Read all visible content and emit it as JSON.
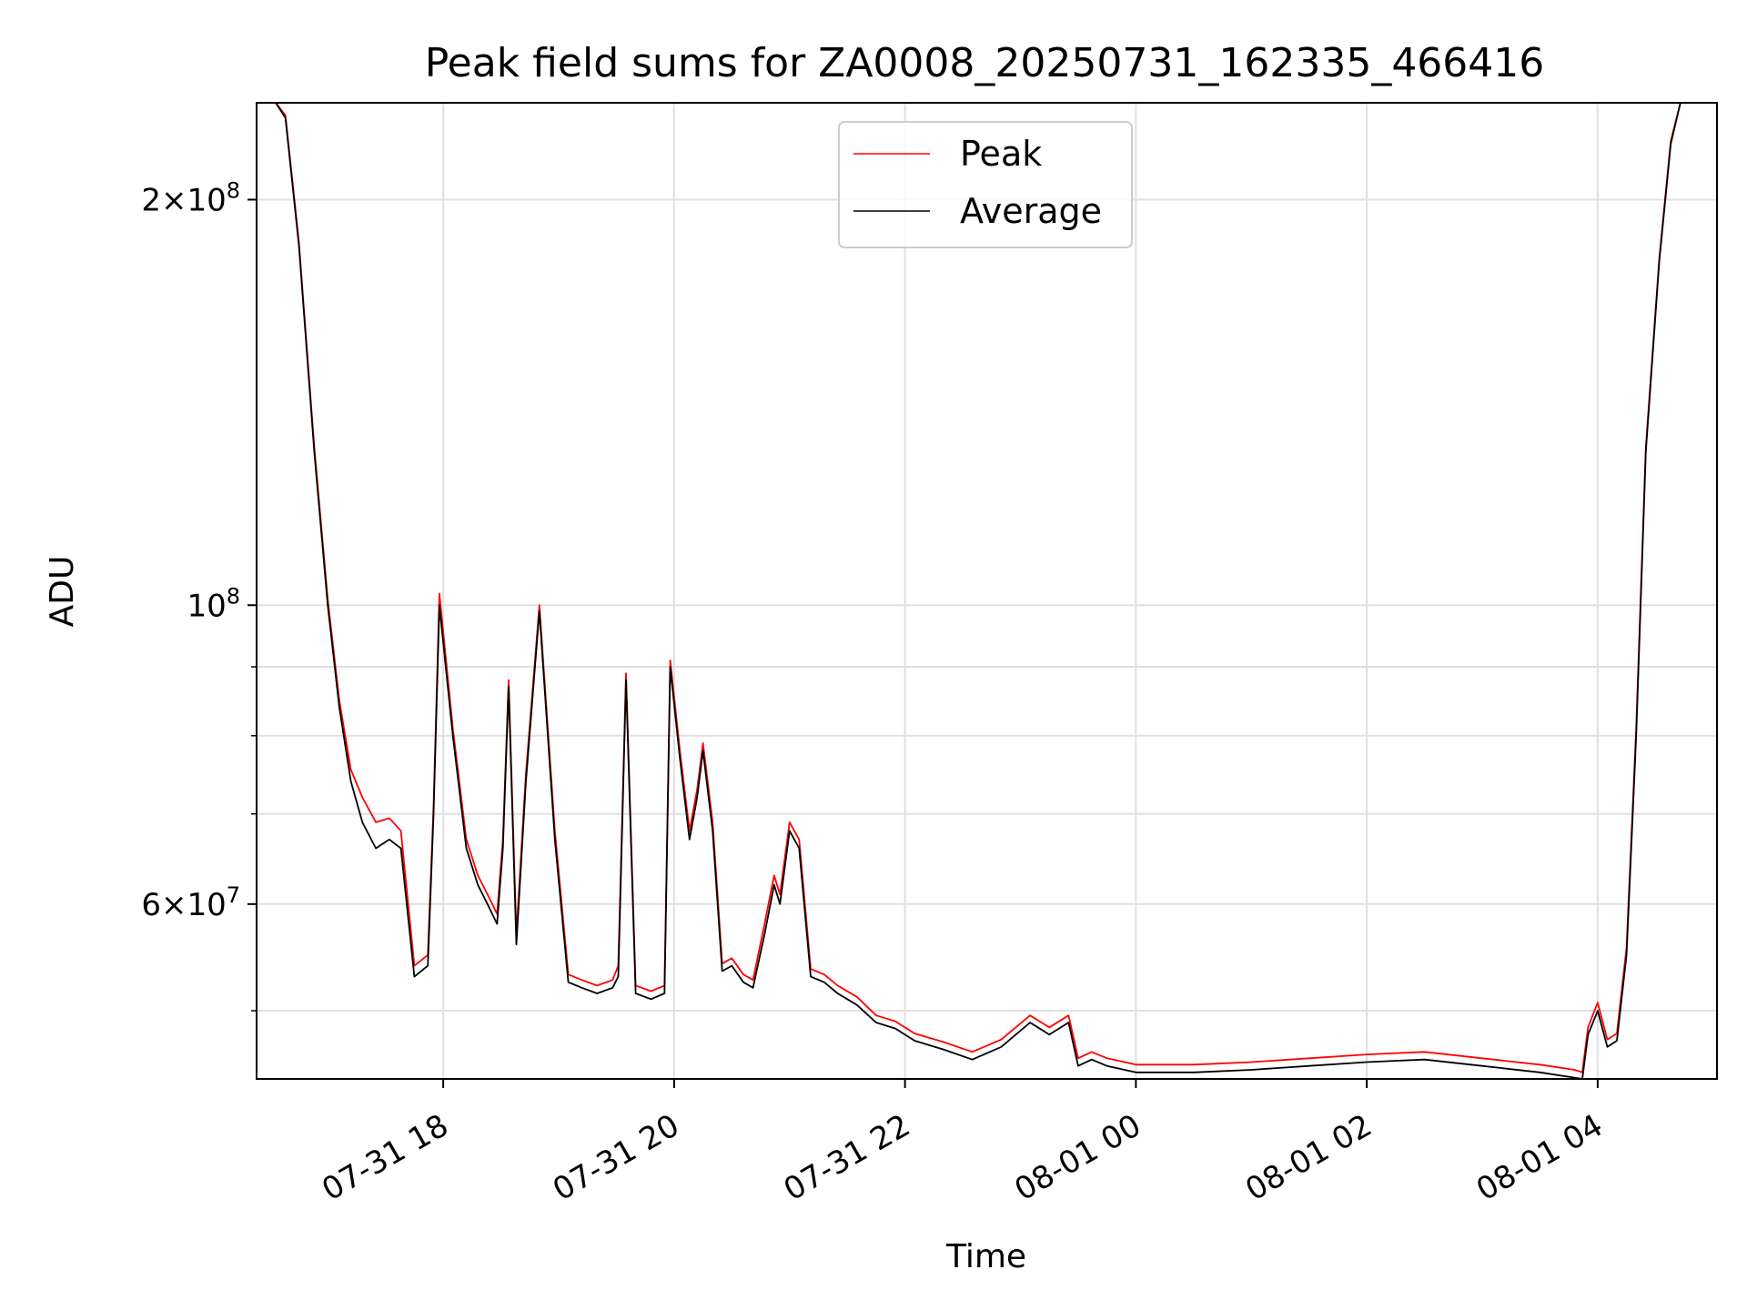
{
  "chart_data": {
    "type": "line",
    "title": "Peak field sums for ZA0008_20250731_162335_466416",
    "xlabel": "Time",
    "ylabel": "ADU",
    "yscale": "log",
    "xlim": [
      "2025-07-31 16:23",
      "2025-08-01 05:02"
    ],
    "ylim": [
      44500000,
      236000000
    ],
    "grid": true,
    "legend": {
      "position": "top-center",
      "entries": [
        "Peak",
        "Average"
      ]
    },
    "colors": {
      "Peak": "#ff0000",
      "Average": "#000000",
      "grid": "#e0e0e0",
      "axis": "#000000"
    },
    "x_ticks": [
      {
        "time": "2025-07-31 18:00",
        "label": "07-31 18"
      },
      {
        "time": "2025-07-31 20:00",
        "label": "07-31 20"
      },
      {
        "time": "2025-07-31 22:00",
        "label": "07-31 22"
      },
      {
        "time": "2025-08-01 00:00",
        "label": "08-01 00"
      },
      {
        "time": "2025-08-01 02:00",
        "label": "08-01 02"
      },
      {
        "time": "2025-08-01 04:00",
        "label": "08-01 04"
      }
    ],
    "y_ticks": [
      {
        "value": 200000000,
        "mantissa": "2",
        "exp": "8"
      },
      {
        "value": 100000000,
        "mantissa": "",
        "exp": "8"
      },
      {
        "value": 60000000,
        "mantissa": "6",
        "exp": "7"
      }
    ],
    "y_minor_ticks": [
      50000000,
      70000000,
      80000000,
      90000000
    ],
    "series": [
      {
        "name": "Average",
        "x": [
          "2025-07-31 16:23",
          "2025-07-31 16:33",
          "2025-07-31 16:38",
          "2025-07-31 16:45",
          "2025-07-31 16:53",
          "2025-07-31 17:00",
          "2025-07-31 17:06",
          "2025-07-31 17:12",
          "2025-07-31 17:18",
          "2025-07-31 17:25",
          "2025-07-31 17:32",
          "2025-07-31 17:38",
          "2025-07-31 17:45",
          "2025-07-31 17:52",
          "2025-07-31 17:55",
          "2025-07-31 17:58",
          "2025-07-31 18:05",
          "2025-07-31 18:12",
          "2025-07-31 18:18",
          "2025-07-31 18:23",
          "2025-07-31 18:28",
          "2025-07-31 18:31",
          "2025-07-31 18:34",
          "2025-07-31 18:38",
          "2025-07-31 18:43",
          "2025-07-31 18:50",
          "2025-07-31 18:58",
          "2025-07-31 19:05",
          "2025-07-31 19:12",
          "2025-07-31 19:20",
          "2025-07-31 19:28",
          "2025-07-31 19:31",
          "2025-07-31 19:35",
          "2025-07-31 19:40",
          "2025-07-31 19:48",
          "2025-07-31 19:55",
          "2025-07-31 19:58",
          "2025-07-31 20:03",
          "2025-07-31 20:08",
          "2025-07-31 20:12",
          "2025-07-31 20:15",
          "2025-07-31 20:20",
          "2025-07-31 20:25",
          "2025-07-31 20:30",
          "2025-07-31 20:36",
          "2025-07-31 20:41",
          "2025-07-31 20:47",
          "2025-07-31 20:52",
          "2025-07-31 20:55",
          "2025-07-31 21:00",
          "2025-07-31 21:05",
          "2025-07-31 21:11",
          "2025-07-31 21:18",
          "2025-07-31 21:25",
          "2025-07-31 21:35",
          "2025-07-31 21:45",
          "2025-07-31 21:55",
          "2025-07-31 22:05",
          "2025-07-31 22:20",
          "2025-07-31 22:35",
          "2025-07-31 22:50",
          "2025-07-31 23:05",
          "2025-07-31 23:15",
          "2025-07-31 23:25",
          "2025-07-31 23:30",
          "2025-07-31 23:37",
          "2025-07-31 23:45",
          "2025-08-01 00:00",
          "2025-08-01 00:30",
          "2025-08-01 01:00",
          "2025-08-01 01:30",
          "2025-08-01 02:00",
          "2025-08-01 02:30",
          "2025-08-01 03:00",
          "2025-08-01 03:30",
          "2025-08-01 03:48",
          "2025-08-01 03:52",
          "2025-08-01 03:55",
          "2025-08-01 04:00",
          "2025-08-01 04:05",
          "2025-08-01 04:10",
          "2025-08-01 04:15",
          "2025-08-01 04:20",
          "2025-08-01 04:25",
          "2025-08-01 04:32",
          "2025-08-01 04:38",
          "2025-08-01 04:43",
          "2025-08-01 04:48",
          "2025-08-01 05:02"
        ],
        "y": [
          236000000,
          236000000,
          230000000,
          185000000,
          130000000,
          100000000,
          84000000,
          74000000,
          69000000,
          66000000,
          67000000,
          66000000,
          53000000,
          54000000,
          70000000,
          100000000,
          80000000,
          66000000,
          62000000,
          60000000,
          58000000,
          66000000,
          87000000,
          56000000,
          74000000,
          99000000,
          67000000,
          52500000,
          52000000,
          51500000,
          52000000,
          53000000,
          88000000,
          51500000,
          51000000,
          51500000,
          90000000,
          77000000,
          67000000,
          72000000,
          78000000,
          68000000,
          53500000,
          54000000,
          52500000,
          52000000,
          57000000,
          62000000,
          60000000,
          68000000,
          66000000,
          53000000,
          52500000,
          51500000,
          50500000,
          49000000,
          48500000,
          47500000,
          46800000,
          46000000,
          47000000,
          49000000,
          48000000,
          49000000,
          45500000,
          46000000,
          45500000,
          45000000,
          45000000,
          45200000,
          45500000,
          45800000,
          46000000,
          45500000,
          45000000,
          44600000,
          44500000,
          48000000,
          50000000,
          47000000,
          47500000,
          55000000,
          80000000,
          130000000,
          180000000,
          220000000,
          236000000,
          236000000,
          236000000
        ]
      },
      {
        "name": "Peak",
        "x": [
          "2025-07-31 16:23",
          "2025-07-31 16:33",
          "2025-07-31 16:38",
          "2025-07-31 16:45",
          "2025-07-31 16:53",
          "2025-07-31 17:00",
          "2025-07-31 17:06",
          "2025-07-31 17:12",
          "2025-07-31 17:18",
          "2025-07-31 17:25",
          "2025-07-31 17:32",
          "2025-07-31 17:38",
          "2025-07-31 17:45",
          "2025-07-31 17:52",
          "2025-07-31 17:55",
          "2025-07-31 17:58",
          "2025-07-31 18:05",
          "2025-07-31 18:12",
          "2025-07-31 18:18",
          "2025-07-31 18:23",
          "2025-07-31 18:28",
          "2025-07-31 18:31",
          "2025-07-31 18:34",
          "2025-07-31 18:38",
          "2025-07-31 18:43",
          "2025-07-31 18:50",
          "2025-07-31 18:58",
          "2025-07-31 19:05",
          "2025-07-31 19:12",
          "2025-07-31 19:20",
          "2025-07-31 19:28",
          "2025-07-31 19:31",
          "2025-07-31 19:35",
          "2025-07-31 19:40",
          "2025-07-31 19:48",
          "2025-07-31 19:55",
          "2025-07-31 19:58",
          "2025-07-31 20:03",
          "2025-07-31 20:08",
          "2025-07-31 20:12",
          "2025-07-31 20:15",
          "2025-07-31 20:20",
          "2025-07-31 20:25",
          "2025-07-31 20:30",
          "2025-07-31 20:36",
          "2025-07-31 20:41",
          "2025-07-31 20:47",
          "2025-07-31 20:52",
          "2025-07-31 20:55",
          "2025-07-31 21:00",
          "2025-07-31 21:05",
          "2025-07-31 21:11",
          "2025-07-31 21:18",
          "2025-07-31 21:25",
          "2025-07-31 21:35",
          "2025-07-31 21:45",
          "2025-07-31 21:55",
          "2025-07-31 22:05",
          "2025-07-31 22:20",
          "2025-07-31 22:35",
          "2025-07-31 22:50",
          "2025-07-31 23:05",
          "2025-07-31 23:15",
          "2025-07-31 23:25",
          "2025-07-31 23:30",
          "2025-07-31 23:37",
          "2025-07-31 23:45",
          "2025-08-01 00:00",
          "2025-08-01 00:30",
          "2025-08-01 01:00",
          "2025-08-01 01:30",
          "2025-08-01 02:00",
          "2025-08-01 02:30",
          "2025-08-01 03:00",
          "2025-08-01 03:30",
          "2025-08-01 03:48",
          "2025-08-01 03:52",
          "2025-08-01 03:55",
          "2025-08-01 04:00",
          "2025-08-01 04:05",
          "2025-08-01 04:10",
          "2025-08-01 04:15",
          "2025-08-01 04:20",
          "2025-08-01 04:25",
          "2025-08-01 04:32",
          "2025-08-01 04:38",
          "2025-08-01 04:43",
          "2025-08-01 04:48",
          "2025-08-01 05:02"
        ],
        "y": [
          236000000,
          236000000,
          231000000,
          186000000,
          131000000,
          101000000,
          85000000,
          75500000,
          72000000,
          69000000,
          69500000,
          68000000,
          54000000,
          55000000,
          71000000,
          102000000,
          81000000,
          67000000,
          63000000,
          61000000,
          59000000,
          67000000,
          88000000,
          57000000,
          75000000,
          100000000,
          68000000,
          53200000,
          52700000,
          52200000,
          52700000,
          54000000,
          89000000,
          52200000,
          51700000,
          52200000,
          91000000,
          78000000,
          68000000,
          73000000,
          79000000,
          69000000,
          54200000,
          54700000,
          53200000,
          52700000,
          58000000,
          63000000,
          61000000,
          69000000,
          67000000,
          53700000,
          53200000,
          52200000,
          51200000,
          49600000,
          49100000,
          48100000,
          47400000,
          46600000,
          47600000,
          49600000,
          48600000,
          49600000,
          46100000,
          46600000,
          46100000,
          45600000,
          45600000,
          45800000,
          46100000,
          46400000,
          46600000,
          46100000,
          45600000,
          45200000,
          45000000,
          48600000,
          50700000,
          47600000,
          48100000,
          55700000,
          81000000,
          131000000,
          181000000,
          221000000,
          236000000,
          236000000,
          236000000
        ]
      }
    ]
  }
}
